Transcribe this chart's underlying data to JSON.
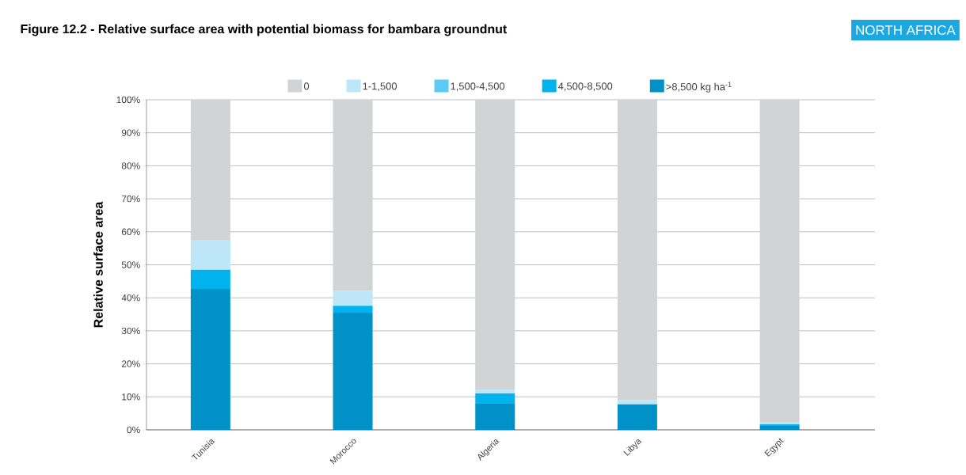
{
  "chart_data": {
    "type": "bar",
    "stacked": true,
    "title": "Figure 12.2 - Relative surface area with potential biomass for bambara groundnut",
    "ylabel": "Relative surface area",
    "annotations": [
      "NORTH AFRICA"
    ],
    "categories": [
      "Tunisia",
      "Morocco",
      "Algeria",
      "Libya",
      "Egypt"
    ],
    "series": [
      {
        "name": ">8,500 kg ha$^{-1}$",
        "color": "#0091c8",
        "values": [
          42.7,
          35.5,
          8.1,
          7.7,
          1.2
        ]
      },
      {
        "name": "4,500-8,500",
        "color": "#00b2ee",
        "values": [
          5.8,
          2.1,
          2.9,
          0,
          0.5
        ]
      },
      {
        "name": "1,500-4,500",
        "color": "#5bcbf5",
        "values": [
          0,
          0,
          0,
          0,
          0
        ]
      },
      {
        "name": "1-1,500",
        "color": "#bde6f9",
        "values": [
          8.9,
          4.5,
          1.2,
          1.3,
          0.5
        ]
      },
      {
        "name": "0",
        "color": "#d1d3d4",
        "values": [
          42.6,
          57.9,
          87.8,
          91.0,
          97.8
        ]
      }
    ],
    "ylim": [
      0,
      100
    ],
    "yticks": [
      {
        "value": 0,
        "label": "0%"
      },
      {
        "value": 10,
        "label": "10%"
      },
      {
        "value": 20,
        "label": "20%"
      },
      {
        "value": 30,
        "label": "30%"
      },
      {
        "value": 40,
        "label": "40%"
      },
      {
        "value": 50,
        "label": "50%"
      },
      {
        "value": 60,
        "label": "60%"
      },
      {
        "value": 70,
        "label": "70%"
      },
      {
        "value": 80,
        "label": "80%"
      },
      {
        "value": 90,
        "label": "90%"
      },
      {
        "value": 100,
        "label": "100%"
      }
    ],
    "grid": "y",
    "legend": "top"
  }
}
